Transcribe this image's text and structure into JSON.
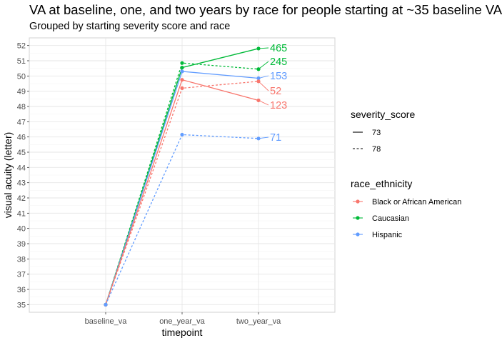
{
  "chart_data": {
    "type": "line",
    "title": "VA at baseline, one, and two years by race for people starting at ~35 baseline VA",
    "subtitle": "Grouped by starting severity score and race",
    "xlabel": "timepoint",
    "ylabel": "visual acuity (letter)",
    "categories": [
      "baseline_va",
      "one_year_va",
      "two_year_va"
    ],
    "ylim": [
      34.5,
      52.5
    ],
    "yticks": [
      35,
      36,
      37,
      38,
      39,
      40,
      41,
      42,
      43,
      44,
      45,
      46,
      47,
      48,
      49,
      50,
      51,
      52
    ],
    "grid": true,
    "legend_placement": "right",
    "legend": {
      "linetype_title": "severity_score",
      "linetype_entries": [
        {
          "label": "73",
          "dash": "solid"
        },
        {
          "label": "78",
          "dash": "dashed"
        }
      ],
      "color_title": "race_ethnicity",
      "color_entries": [
        {
          "label": "Black or African American",
          "color": "#F8766D"
        },
        {
          "label": "Caucasian",
          "color": "#00BA38"
        },
        {
          "label": "Hispanic",
          "color": "#619CFF"
        }
      ]
    },
    "series": [
      {
        "race": "Caucasian",
        "severity": "73",
        "color": "#00BA38",
        "dash": "solid",
        "values": [
          35,
          50.55,
          51.8
        ],
        "end_label": "465"
      },
      {
        "race": "Caucasian",
        "severity": "78",
        "color": "#00BA38",
        "dash": "dashed",
        "values": [
          35,
          50.85,
          50.45
        ],
        "end_label": "245"
      },
      {
        "race": "Hispanic",
        "severity": "73",
        "color": "#619CFF",
        "dash": "solid",
        "values": [
          35,
          50.3,
          49.85
        ],
        "end_label": "153"
      },
      {
        "race": "Black or African American",
        "severity": "78",
        "color": "#F8766D",
        "dash": "dashed",
        "values": [
          35,
          49.2,
          49.65
        ],
        "end_label": "52"
      },
      {
        "race": "Black or African American",
        "severity": "73",
        "color": "#F8766D",
        "dash": "solid",
        "values": [
          35,
          49.75,
          48.4
        ],
        "end_label": "123"
      },
      {
        "race": "Hispanic",
        "severity": "78",
        "color": "#619CFF",
        "dash": "dashed",
        "values": [
          35,
          46.15,
          45.9
        ],
        "end_label": "71"
      }
    ]
  }
}
